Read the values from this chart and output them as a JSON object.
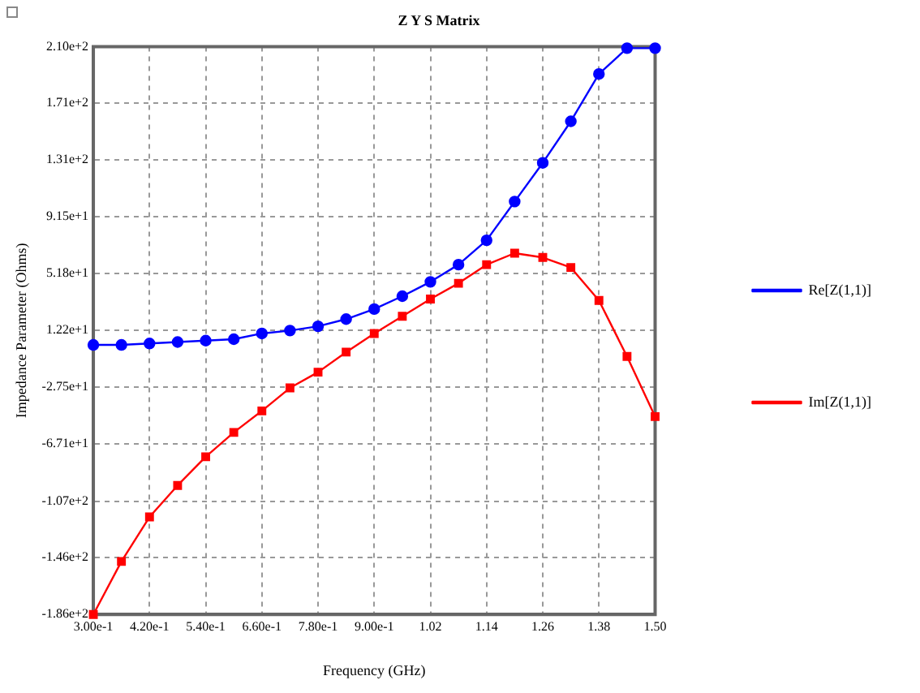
{
  "chart_data": {
    "type": "line",
    "title": "Z Y S Matrix",
    "xlabel": "Frequency (GHz)",
    "ylabel": "Impedance Parameter (Ohms)",
    "x": [
      0.3,
      0.36,
      0.42,
      0.48,
      0.54,
      0.6,
      0.66,
      0.72,
      0.78,
      0.84,
      0.9,
      0.96,
      1.02,
      1.08,
      1.14,
      1.2,
      1.26,
      1.32,
      1.38,
      1.44,
      1.5
    ],
    "series": [
      {
        "name": "Re[Z(1,1)]",
        "color": "#0000ff",
        "marker": "circle",
        "values": [
          2,
          2,
          3,
          4,
          5,
          6,
          10,
          12,
          15,
          20,
          27,
          36,
          46,
          58,
          75,
          102,
          129,
          158,
          191,
          209,
          209
        ]
      },
      {
        "name": "Im[Z(1,1)]",
        "color": "#ff0000",
        "marker": "square",
        "values": [
          -186,
          -149,
          -118,
          -96,
          -76,
          -59,
          -44,
          -28,
          -17,
          -3,
          10,
          22,
          34,
          45,
          58,
          66,
          63,
          56,
          33,
          -6,
          -48
        ]
      }
    ],
    "xlim": [
      0.3,
      1.5
    ],
    "xticks": [
      {
        "value": 0.3,
        "label": "3.00e-1"
      },
      {
        "value": 0.42,
        "label": "4.20e-1"
      },
      {
        "value": 0.54,
        "label": "5.40e-1"
      },
      {
        "value": 0.66,
        "label": "6.60e-1"
      },
      {
        "value": 0.78,
        "label": "7.80e-1"
      },
      {
        "value": 0.9,
        "label": "9.00e-1"
      },
      1.02,
      1.14,
      1.26,
      1.38,
      {
        "value": 1.5,
        "label": "1.50"
      }
    ],
    "ylim": [
      -186,
      210
    ],
    "yticks": [
      {
        "value": -186,
        "label": "-1.86e+2"
      },
      {
        "value": -146,
        "label": "-1.46e+2"
      },
      {
        "value": -107,
        "label": "-1.07e+2"
      },
      {
        "value": -67.1,
        "label": "-6.71e+1"
      },
      {
        "value": -27.5,
        "label": "-2.75e+1"
      },
      {
        "value": 12.2,
        "label": "1.22e+1"
      },
      {
        "value": 51.8,
        "label": "5.18e+1"
      },
      {
        "value": 91.5,
        "label": "9.15e+1"
      },
      {
        "value": 131,
        "label": "1.31e+2"
      },
      {
        "value": 171,
        "label": "1.71e+2"
      },
      {
        "value": 210,
        "label": "2.10e+2"
      }
    ],
    "grid": true,
    "legend": "right",
    "line_style": "solid"
  }
}
